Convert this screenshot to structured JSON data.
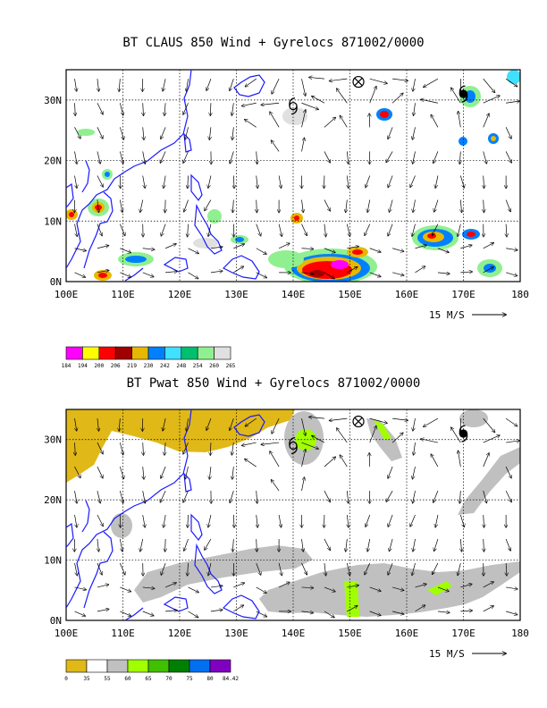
{
  "panels": [
    {
      "title": "BT CLAUS 850 Wind + Gyrelocs 871002/0000",
      "lon_labels": [
        "100E",
        "110E",
        "120E",
        "130E",
        "140E",
        "150E",
        "160E",
        "170E",
        "180"
      ],
      "lat_labels": [
        "30N",
        "20N",
        "10N",
        "0N"
      ],
      "scale_label": "15 M/S",
      "colorbar": {
        "labels": [
          "184",
          "194",
          "200",
          "206",
          "219",
          "230",
          "242",
          "248",
          "254",
          "260",
          "265"
        ],
        "colors": [
          "#ff00ff",
          "#ffff00",
          "#ff0000",
          "#a00000",
          "#e8b800",
          "#0080ff",
          "#40e0ff",
          "#00c070",
          "#90f090",
          "#e0e0e0"
        ]
      }
    },
    {
      "title": "BT Pwat 850 Wind + Gyrelocs 871002/0000",
      "lon_labels": [
        "100E",
        "110E",
        "120E",
        "130E",
        "140E",
        "150E",
        "160E",
        "170E",
        "180"
      ],
      "lat_labels": [
        "30N",
        "20N",
        "10N",
        "0N"
      ],
      "scale_label": "15 M/S",
      "colorbar": {
        "labels": [
          "0",
          "35",
          "55",
          "60",
          "65",
          "70",
          "75",
          "80",
          "84.42"
        ],
        "colors": [
          "#e0b818",
          "#ffffff",
          "#c0c0c0",
          "#a0ff00",
          "#40c000",
          "#008000",
          "#0070f0",
          "#8000c0"
        ]
      }
    }
  ],
  "map": {
    "lon_range": [
      100,
      180
    ],
    "lat_range": [
      0,
      35
    ],
    "grid_lons": [
      110,
      120,
      130,
      140,
      150,
      160,
      170
    ],
    "grid_lats": [
      10,
      20,
      30
    ],
    "gyre_markers": [
      {
        "type": "typhoon",
        "lon": 140,
        "lat": 29
      },
      {
        "type": "circle-x",
        "lon": 151.5,
        "lat": 33
      },
      {
        "type": "typhoon-filled",
        "lon": 170,
        "lat": 31
      }
    ]
  }
}
